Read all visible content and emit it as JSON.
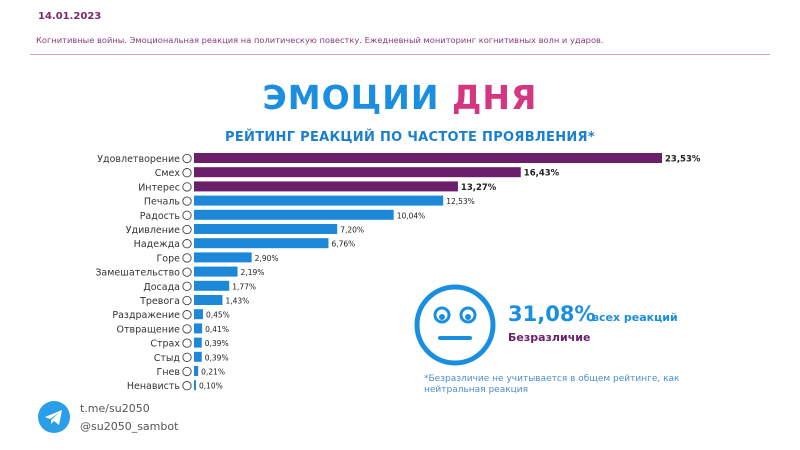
{
  "header": {
    "date": "14.01.2023",
    "subtitle": "Когнитивные войны. Эмоциональная реакция на политическую повестку. Ежедневный мониторинг когнитивных волн и ударов."
  },
  "headline": {
    "word1": "ЭМОЦИИ",
    "word2": "ДНЯ"
  },
  "chart_data": {
    "type": "bar",
    "orientation": "horizontal",
    "title": "РЕЙТИНГ РЕАКЦИЙ ПО ЧАСТОТЕ ПРОЯВЛЕНИЯ*",
    "categories": [
      "Удовлетворение",
      "Смех",
      "Интерес",
      "Печаль",
      "Радость",
      "Удивление",
      "Надежда",
      "Горе",
      "Замешательство",
      "Досада",
      "Тревога",
      "Раздражение",
      "Отвращение",
      "Страх",
      "Стыд",
      "Гнев",
      "Ненависть"
    ],
    "values": [
      23.53,
      16.43,
      13.27,
      12.53,
      10.04,
      7.2,
      6.76,
      2.9,
      2.19,
      1.77,
      1.43,
      0.45,
      0.41,
      0.39,
      0.39,
      0.21,
      0.1
    ],
    "value_labels": [
      "23,53%",
      "16,43%",
      "13,27%",
      "12,53%",
      "10,04%",
      "7,20%",
      "6,76%",
      "2,90%",
      "2,19%",
      "1,77%",
      "1,43%",
      "0,45%",
      "0,41%",
      "0,39%",
      "0,39%",
      "0,21%",
      "0,10%"
    ],
    "top_color": "#6b1f6b",
    "rest_color": "#1e88d8",
    "top_count": 3
  },
  "indifference": {
    "percent": "31,08%",
    "suffix": "всех реакций",
    "label": "Безразличие",
    "note": "*Безразличие не учитывается в общем рейтинге, как нейтральная реакция",
    "icon": "neutral-face-icon"
  },
  "footer": {
    "link1": "t.me/su2050",
    "link2": "@su2050_sambot",
    "icon": "telegram-icon"
  }
}
